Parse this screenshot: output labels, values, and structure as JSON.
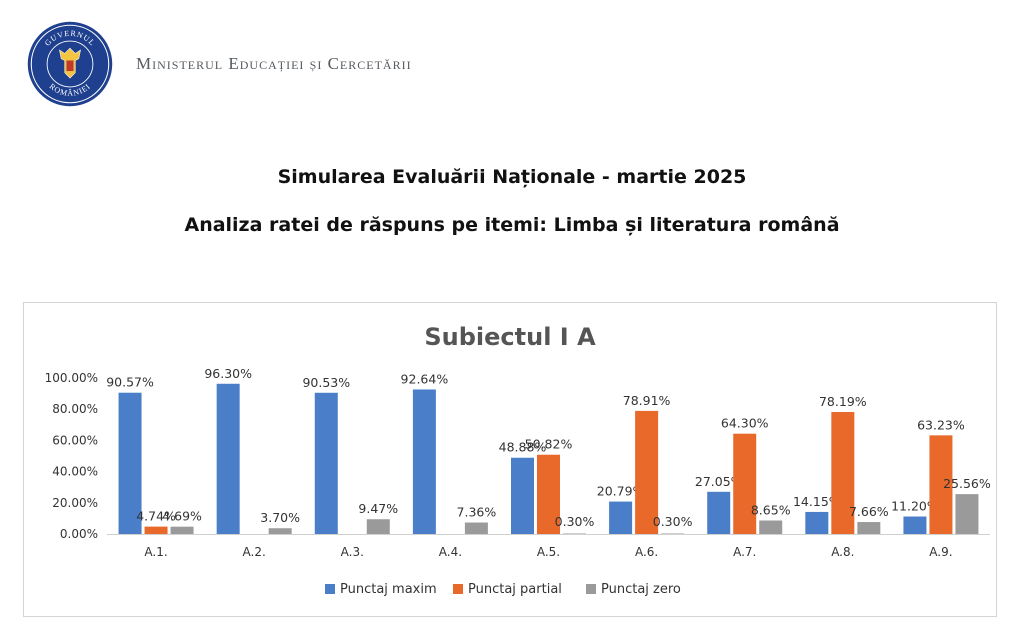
{
  "header": {
    "ministry_name": "Ministerul Educației și Cercetării",
    "seal_text": "GUVERNUL ROMÂNIEI"
  },
  "document": {
    "title": "Simularea Evaluării Naționale - martie 2025",
    "subtitle": "Analiza ratei de răspuns pe itemi: Limba și literatura română"
  },
  "chart_data": {
    "type": "bar",
    "title": "Subiectul I A",
    "xlabel": "",
    "ylabel": "",
    "categories": [
      "A.1.",
      "A.2.",
      "A.3.",
      "A.4.",
      "A.5.",
      "A.6.",
      "A.7.",
      "A.8.",
      "A.9."
    ],
    "series": [
      {
        "name": "Punctaj maxim",
        "color": "#4a7ec8",
        "values": [
          90.57,
          96.3,
          90.53,
          92.64,
          48.88,
          20.79,
          27.05,
          14.15,
          11.2
        ],
        "labels": [
          "90.57%",
          "96.30%",
          "90.53%",
          "92.64%",
          "48.88%",
          "20.79%",
          "27.05%",
          "14.15%",
          "11.20%"
        ]
      },
      {
        "name": "Punctaj partial",
        "color": "#e8692a",
        "values": [
          4.74,
          0,
          0,
          0,
          50.82,
          78.91,
          64.3,
          78.19,
          63.23
        ],
        "labels": [
          "4.74%",
          "",
          "",
          "",
          "50.82%",
          "78.91%",
          "64.30%",
          "78.19%",
          "63.23%"
        ]
      },
      {
        "name": "Punctaj zero",
        "color": "#9a9a9a",
        "values": [
          4.69,
          3.7,
          9.47,
          7.36,
          0.3,
          0.3,
          8.65,
          7.66,
          25.56
        ],
        "labels": [
          "4.69%",
          "3.70%",
          "9.47%",
          "7.36%",
          "0.30%",
          "0.30%",
          "8.65%",
          "7.66%",
          "25.56%"
        ]
      }
    ],
    "ylim": [
      0,
      100
    ],
    "yticks": [
      "0.00%",
      "20.00%",
      "40.00%",
      "60.00%",
      "80.00%",
      "100.00%"
    ],
    "grid": false,
    "legend_position": "bottom"
  }
}
